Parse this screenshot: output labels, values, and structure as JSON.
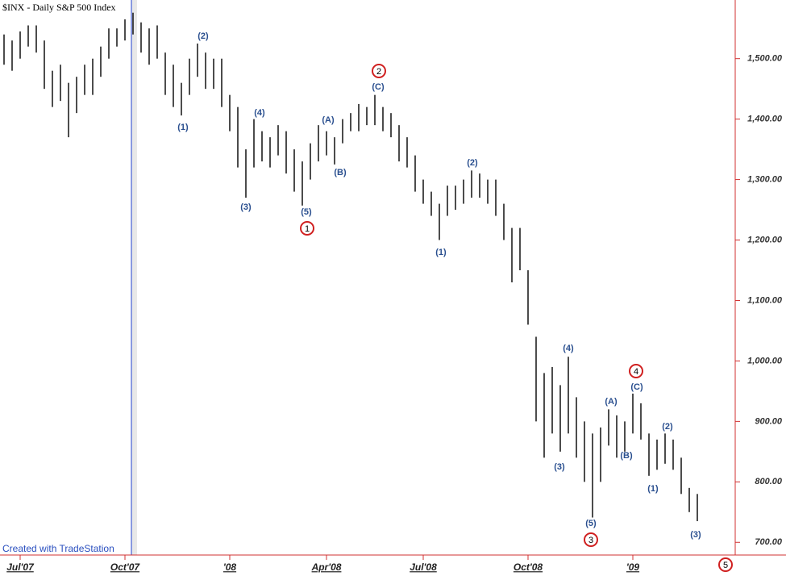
{
  "chart_data": {
    "type": "hilo",
    "title": "$INX - Daily  S&P 500 Index",
    "footer": "Created with TradeStation",
    "categories": [
      null,
      null,
      "Jul'07",
      null,
      null,
      null,
      null,
      null,
      null,
      null,
      null,
      null,
      null,
      null,
      null,
      "Oct'07",
      null,
      null,
      null,
      null,
      null,
      null,
      null,
      null,
      null,
      null,
      null,
      null,
      "'08",
      null,
      null,
      null,
      null,
      null,
      null,
      null,
      null,
      null,
      null,
      null,
      "Apr'08",
      null,
      null,
      null,
      null,
      null,
      null,
      null,
      null,
      null,
      null,
      null,
      "Jul'08",
      null,
      null,
      null,
      null,
      null,
      null,
      null,
      null,
      null,
      null,
      null,
      null,
      "Oct'08",
      null,
      null,
      null,
      null,
      null,
      null,
      null,
      null,
      null,
      null,
      null,
      null,
      "'09",
      null,
      null,
      null,
      null,
      null,
      null,
      null,
      null
    ],
    "high": [
      1540,
      1530,
      1545,
      1555,
      1555,
      1530,
      1480,
      1490,
      1460,
      1470,
      1490,
      1500,
      1520,
      1550,
      1550,
      1565,
      1576,
      1560,
      1550,
      1555,
      1510,
      1490,
      1460,
      1500,
      1525,
      1510,
      1500,
      1500,
      1440,
      1420,
      1350,
      1400,
      1380,
      1370,
      1390,
      1380,
      1350,
      1330,
      1360,
      1390,
      1380,
      1370,
      1400,
      1410,
      1425,
      1420,
      1440,
      1420,
      1410,
      1390,
      1370,
      1340,
      1300,
      1280,
      1260,
      1290,
      1290,
      1300,
      1315,
      1310,
      1300,
      1300,
      1260,
      1220,
      1220,
      1150,
      1040,
      980,
      990,
      960,
      1007,
      940,
      900,
      880,
      890,
      920,
      910,
      900,
      946,
      930,
      880,
      870,
      880,
      870,
      840,
      790,
      780
    ],
    "low": [
      1490,
      1480,
      1500,
      1520,
      1510,
      1450,
      1420,
      1430,
      1370,
      1410,
      1440,
      1440,
      1470,
      1500,
      1520,
      1530,
      1540,
      1510,
      1490,
      1500,
      1440,
      1420,
      1406,
      1440,
      1470,
      1450,
      1450,
      1420,
      1380,
      1320,
      1270,
      1320,
      1330,
      1320,
      1340,
      1310,
      1280,
      1257,
      1300,
      1330,
      1340,
      1325,
      1360,
      1380,
      1380,
      1390,
      1390,
      1380,
      1370,
      1330,
      1320,
      1280,
      1260,
      1240,
      1200,
      1240,
      1250,
      1260,
      1270,
      1270,
      1260,
      1240,
      1200,
      1130,
      1150,
      1060,
      900,
      840,
      880,
      850,
      880,
      840,
      800,
      741,
      800,
      860,
      840,
      850,
      880,
      870,
      810,
      820,
      830,
      820,
      780,
      750,
      735
    ],
    "color": "#000000",
    "ylim": [
      679,
      1597
    ],
    "yticks": [
      {
        "value": 700,
        "label": "700.00"
      },
      {
        "value": 800,
        "label": "800.00"
      },
      {
        "value": 900,
        "label": "900.00"
      },
      {
        "value": 1000,
        "label": "1,000.00"
      },
      {
        "value": 1100,
        "label": "1,100.00"
      },
      {
        "value": 1200,
        "label": "1,200.00"
      },
      {
        "value": 1300,
        "label": "1,300.00"
      },
      {
        "value": 1400,
        "label": "1,400.00"
      },
      {
        "value": 1500,
        "label": "1,500.00"
      }
    ],
    "wave_labels": [
      "(1)",
      "(2)",
      "(3)",
      "(4)",
      "(5)",
      "(A)",
      "(B)",
      "(C)",
      "(1)",
      "(2)",
      "(3)",
      "(4)",
      "(5)",
      "(A)",
      "(B)",
      "(C)",
      "(1)",
      "(2)",
      "(3)"
    ],
    "major_waves": [
      "1",
      "2",
      "3",
      "4",
      "5"
    ]
  }
}
